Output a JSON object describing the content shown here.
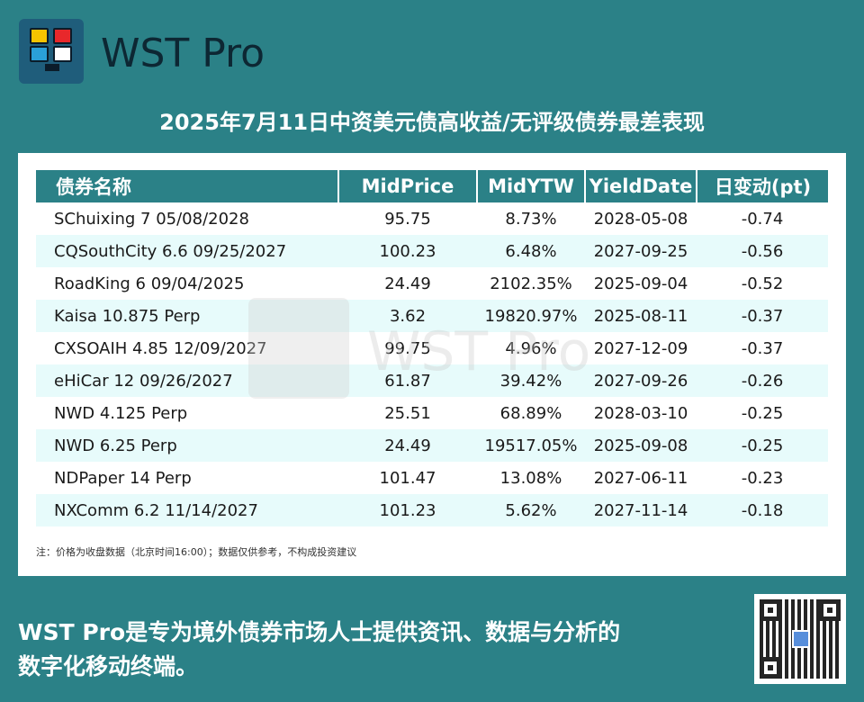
{
  "brand": {
    "name": "WST Pro",
    "logo_colors": [
      "#f5c400",
      "#e8282b",
      "#2aa0d8",
      "#ffffff"
    ]
  },
  "headline": "2025年7月11日中资美元债高收益/无评级债券最差表现",
  "table": {
    "headers": [
      "债券名称",
      "MidPrice",
      "MidYTW",
      "YieldDate",
      "日变动(pt)"
    ],
    "rows": [
      [
        "SChuixing 7 05/08/2028",
        "95.75",
        "8.73%",
        "2028-05-08",
        "-0.74"
      ],
      [
        "CQSouthCity 6.6 09/25/2027",
        "100.23",
        "6.48%",
        "2027-09-25",
        "-0.56"
      ],
      [
        "RoadKing 6 09/04/2025",
        "24.49",
        "2102.35%",
        "2025-09-04",
        "-0.52"
      ],
      [
        "Kaisa 10.875 Perp",
        "3.62",
        "19820.97%",
        "2025-08-11",
        "-0.37"
      ],
      [
        "CXSOAIH 4.85 12/09/2027",
        "99.75",
        "4.96%",
        "2027-12-09",
        "-0.37"
      ],
      [
        "eHiCar 12 09/26/2027",
        "61.87",
        "39.42%",
        "2027-09-26",
        "-0.26"
      ],
      [
        "NWD 4.125 Perp",
        "25.51",
        "68.89%",
        "2028-03-10",
        "-0.25"
      ],
      [
        "NWD 6.25 Perp",
        "24.49",
        "19517.05%",
        "2025-09-08",
        "-0.25"
      ],
      [
        "NDPaper 14 Perp",
        "101.47",
        "13.08%",
        "2027-06-11",
        "-0.23"
      ],
      [
        "NXComm 6.2 11/14/2027",
        "101.23",
        "5.62%",
        "2027-11-14",
        "-0.18"
      ]
    ]
  },
  "note": "注：价格为收盘数据（北京时间16:00）；数据仅供参考，不构成投资建议",
  "footer": {
    "line1": "WST Pro是专为境外债券市场人士提供资讯、数据与分析的",
    "line2": "数字化移动终端。"
  },
  "watermark": "WST Pro",
  "colors": {
    "background": "#2b8187",
    "header_bg": "#2b8187",
    "alt_row": "#e7fbfb"
  }
}
